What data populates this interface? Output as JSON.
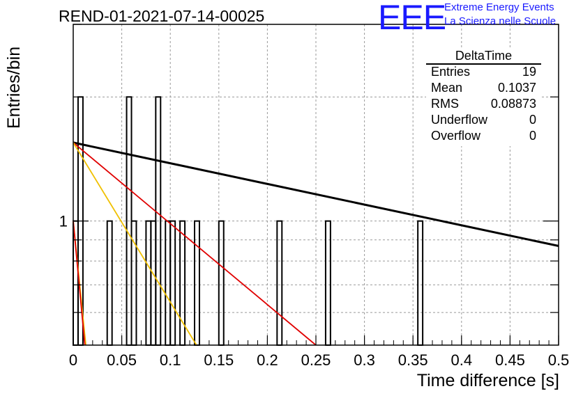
{
  "title": "REND-01-2021-07-14-00025",
  "logo": {
    "mark": "EEE",
    "line1": "Extreme Energy Events",
    "line2": "La Scienza nelle Scuole",
    "color": "#1a1aff"
  },
  "stats": {
    "title": "DeltaTime",
    "rows": [
      {
        "label": "Entries",
        "value": "19"
      },
      {
        "label": "Mean",
        "value": "0.1037"
      },
      {
        "label": "RMS",
        "value": "0.08873"
      },
      {
        "label": "Underflow",
        "value": "0"
      },
      {
        "label": "Overflow",
        "value": "0"
      }
    ]
  },
  "chart_data": {
    "type": "bar",
    "title": "REND-01-2021-07-14-00025",
    "xlabel": "Time difference [s]",
    "ylabel": "Entries/bin",
    "xlim": [
      0,
      0.5
    ],
    "ylim": [
      0.5,
      3
    ],
    "yscale": "log",
    "grid": true,
    "x_ticks": [
      "0",
      "0.05",
      "0.1",
      "0.15",
      "0.2",
      "0.25",
      "0.3",
      "0.35",
      "0.4",
      "0.45",
      "0.5"
    ],
    "y_ticks": [
      "1"
    ],
    "bin_width": 0.005,
    "bins": [
      {
        "x": 0.0,
        "count": 1
      },
      {
        "x": 0.005,
        "count": 2
      },
      {
        "x": 0.035,
        "count": 1
      },
      {
        "x": 0.055,
        "count": 2
      },
      {
        "x": 0.06,
        "count": 1
      },
      {
        "x": 0.075,
        "count": 1
      },
      {
        "x": 0.08,
        "count": 1
      },
      {
        "x": 0.085,
        "count": 2
      },
      {
        "x": 0.095,
        "count": 1
      },
      {
        "x": 0.1,
        "count": 1
      },
      {
        "x": 0.11,
        "count": 1
      },
      {
        "x": 0.125,
        "count": 1
      },
      {
        "x": 0.15,
        "count": 1
      },
      {
        "x": 0.21,
        "count": 1
      },
      {
        "x": 0.26,
        "count": 1
      },
      {
        "x": 0.355,
        "count": 1
      }
    ],
    "fits": [
      {
        "color": "#000000",
        "points": [
          [
            0.0,
            1.55
          ],
          [
            0.5,
            0.87
          ]
        ]
      },
      {
        "color": "#e00000",
        "points": [
          [
            0.0,
            1.55
          ],
          [
            0.25,
            0.5
          ]
        ]
      },
      {
        "color": "#f0c000",
        "points": [
          [
            0.0,
            1.55
          ],
          [
            0.127,
            0.5
          ]
        ]
      },
      {
        "color": "#f0c000",
        "points": [
          [
            0.0,
            1.0
          ],
          [
            0.013,
            0.5
          ]
        ]
      },
      {
        "color": "#e00000",
        "points": [
          [
            0.0,
            1.0
          ],
          [
            0.012,
            0.5
          ]
        ]
      }
    ]
  }
}
